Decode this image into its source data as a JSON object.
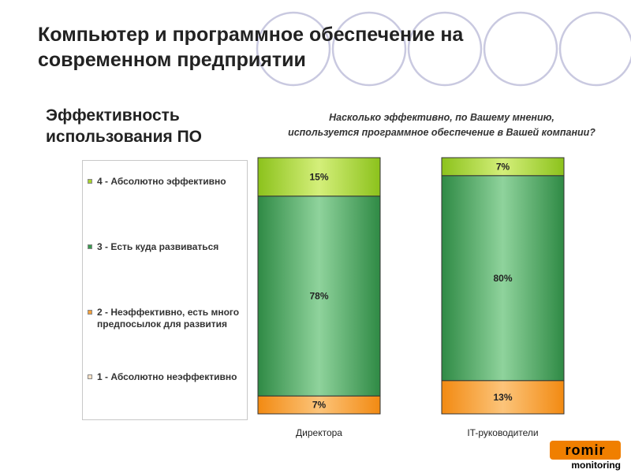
{
  "title_line1": "Компьютер и программное обеспечение на",
  "title_line2": "современном предприятии",
  "subtitle_line1": "Эффективность",
  "subtitle_line2": "использования ПО",
  "question_line1": "Насколько эффективно, по Вашему мнению,",
  "question_line2": "используется программное обеспечение в Вашей компании?",
  "legend": [
    {
      "label": "4 - Абсолютно эффективно",
      "color": "#a8d42c"
    },
    {
      "label": "3 - Есть куда развиваться",
      "color": "#3a9a50"
    },
    {
      "label": "2 - Неэффективно, есть много предпосылок для развития",
      "color": "#f7a13a"
    },
    {
      "label": "1 - Абсолютно неэффективно",
      "color": "#fbe3c8"
    }
  ],
  "colors": {
    "abs_effective": "#a8d42c",
    "room_to_grow": "#3a9a50",
    "ineffective": "#f7a13a",
    "abs_ineffective": "#fbe3c8"
  },
  "chart_data": {
    "type": "bar",
    "stacked": true,
    "percent": true,
    "categories": [
      "Директора",
      "IT-руководители"
    ],
    "series": [
      {
        "name": "1 - Абсолютно неэффективно",
        "values": [
          0,
          0
        ]
      },
      {
        "name": "2 - Неэффективно, есть много предпосылок для развития",
        "values": [
          7,
          13
        ]
      },
      {
        "name": "3 - Есть куда развиваться",
        "values": [
          78,
          80
        ]
      },
      {
        "name": "4 - Абсолютно эффективно",
        "values": [
          15,
          7
        ]
      }
    ],
    "data_labels": [
      [
        "",
        "7%",
        "78%",
        "15%"
      ],
      [
        "",
        "13%",
        "80%",
        "7%"
      ]
    ],
    "title": "",
    "xlabel": "",
    "ylabel": "",
    "ylim": [
      0,
      100
    ]
  },
  "logo": {
    "brand": "romir",
    "sub": "monitoring"
  }
}
